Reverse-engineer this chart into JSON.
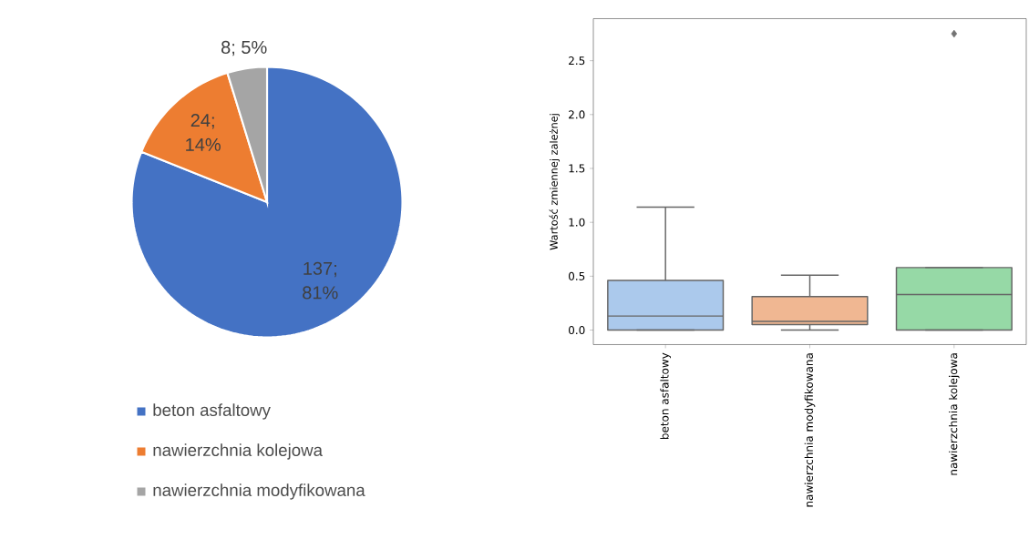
{
  "chart_data": [
    {
      "type": "pie",
      "categories": [
        "beton asfaltowy",
        "nawierzchnia kolejowa",
        "nawierzchnia modyfikowana"
      ],
      "values": [
        137,
        24,
        8
      ],
      "colors": [
        "#4472c4",
        "#ed7d31",
        "#a5a5a5"
      ],
      "value_labels": [
        "137; 81%",
        "24; 14%",
        "8; 5%"
      ],
      "legend": "bottom"
    },
    {
      "type": "box",
      "categories": [
        "beton asfaltowy",
        "nawierzchnia modyfikowana",
        "nawierzchnia kolejowa"
      ],
      "colors": [
        "#abc9ec",
        "#f0b792",
        "#96d9a6"
      ],
      "ylabel": "Wartość zmiennej zależnej",
      "ylim": [
        -0.135,
        2.89
      ],
      "yticks": [
        {
          "value": 0,
          "label": "0.0"
        },
        {
          "value": 0.5,
          "label": "0.5"
        },
        {
          "value": 1,
          "label": "1.0"
        },
        {
          "value": 1.5,
          "label": "1.5"
        },
        {
          "value": 2,
          "label": "2.0"
        },
        {
          "value": 2.5,
          "label": "2.5"
        }
      ],
      "marker": "diamond",
      "boxes": [
        {
          "low": 0,
          "q1": 0,
          "median": 0.13,
          "q3": 0.46,
          "high": 1.14
        },
        {
          "low": 0,
          "q1": 0.05,
          "median": 0.08,
          "q3": 0.31,
          "high": 0.51
        },
        {
          "low": 0,
          "q1": 0,
          "median": 0.33,
          "q3": 0.58,
          "high": 0.58,
          "outliers": [
            2.75
          ]
        }
      ]
    }
  ]
}
